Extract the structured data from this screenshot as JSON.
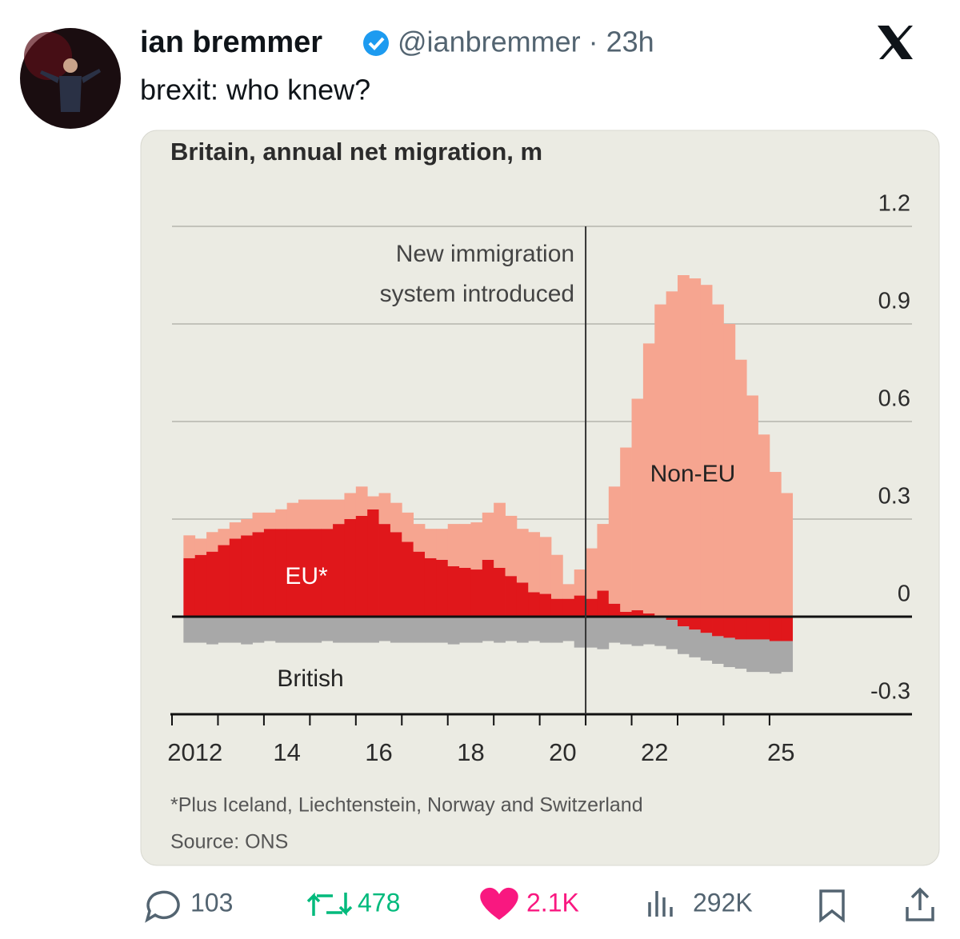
{
  "tweet": {
    "author": {
      "name": "ian bremmer",
      "meta": "@ianbremmer · 23h"
    },
    "text": "brexit: who knew?",
    "stats": {
      "replies": "103",
      "reposts": "478",
      "likes": "2.1K",
      "views": "292K"
    }
  },
  "chart_data": {
    "type": "bar",
    "stacked": true,
    "title": "Britain, annual net migration, m",
    "annotation": {
      "lines": [
        "New immigration",
        "system introduced"
      ],
      "x": 2021
    },
    "footnote": "*Plus Iceland, Liechtenstein, Norway and Switzerland",
    "source": "Source: ONS",
    "x": [
      2012.25,
      2012.5,
      2012.75,
      2013,
      2013.25,
      2013.5,
      2013.75,
      2014,
      2014.25,
      2014.5,
      2014.75,
      2015,
      2015.25,
      2015.5,
      2015.75,
      2016,
      2016.25,
      2016.5,
      2016.75,
      2017,
      2017.25,
      2017.5,
      2017.75,
      2018,
      2018.25,
      2018.5,
      2018.75,
      2019,
      2019.25,
      2019.5,
      2019.75,
      2020,
      2020.25,
      2020.5,
      2020.75,
      2021,
      2021.25,
      2021.5,
      2021.75,
      2022,
      2022.25,
      2022.5,
      2022.75,
      2023,
      2023.25,
      2023.5,
      2023.75,
      2024,
      2024.25,
      2024.5,
      2024.75,
      2025,
      2025.25
    ],
    "series": [
      {
        "name": "EU*",
        "color": "#e0171b",
        "values": [
          0.18,
          0.19,
          0.2,
          0.22,
          0.24,
          0.25,
          0.26,
          0.27,
          0.27,
          0.27,
          0.27,
          0.27,
          0.27,
          0.285,
          0.3,
          0.31,
          0.33,
          0.285,
          0.26,
          0.23,
          0.2,
          0.18,
          0.175,
          0.155,
          0.15,
          0.145,
          0.175,
          0.15,
          0.125,
          0.105,
          0.075,
          0.07,
          0.055,
          0.055,
          0.065,
          0.055,
          0.08,
          0.04,
          0.015,
          0.02,
          0.01,
          0,
          -0.01,
          -0.03,
          -0.04,
          -0.05,
          -0.06,
          -0.065,
          -0.07,
          -0.07,
          -0.07,
          -0.075,
          -0.075
        ]
      },
      {
        "name": "Non-EU",
        "color": "#f6a590",
        "values": [
          0.07,
          0.05,
          0.06,
          0.05,
          0.05,
          0.05,
          0.06,
          0.05,
          0.06,
          0.08,
          0.09,
          0.09,
          0.09,
          0.075,
          0.08,
          0.09,
          0.04,
          0.095,
          0.09,
          0.09,
          0.085,
          0.09,
          0.095,
          0.13,
          0.135,
          0.145,
          0.145,
          0.2,
          0.185,
          0.165,
          0.185,
          0.175,
          0.135,
          0.045,
          0.08,
          0.155,
          0.205,
          0.36,
          0.505,
          0.65,
          0.83,
          0.96,
          1.0,
          1.05,
          1.04,
          1.02,
          0.96,
          0.9,
          0.79,
          0.68,
          0.56,
          0.445,
          0.38
        ]
      },
      {
        "name": "British",
        "color": "#a8a8a8",
        "values": [
          -0.08,
          -0.08,
          -0.085,
          -0.08,
          -0.08,
          -0.085,
          -0.08,
          -0.075,
          -0.08,
          -0.08,
          -0.08,
          -0.08,
          -0.075,
          -0.08,
          -0.08,
          -0.08,
          -0.08,
          -0.075,
          -0.08,
          -0.08,
          -0.08,
          -0.08,
          -0.08,
          -0.085,
          -0.08,
          -0.08,
          -0.075,
          -0.08,
          -0.075,
          -0.08,
          -0.075,
          -0.08,
          -0.08,
          -0.075,
          -0.095,
          -0.095,
          -0.1,
          -0.08,
          -0.085,
          -0.09,
          -0.085,
          -0.09,
          -0.09,
          -0.085,
          -0.085,
          -0.085,
          -0.085,
          -0.09,
          -0.09,
          -0.1,
          -0.1,
          -0.1,
          -0.095
        ]
      }
    ],
    "xlim": [
      2012,
      2028.1
    ],
    "xticks": [
      2012,
      2013,
      2014,
      2015,
      2016,
      2017,
      2018,
      2019,
      2020,
      2021,
      2022,
      2023,
      2024,
      2025
    ],
    "xlabels": [
      {
        "value": 2012.5,
        "label": "2012"
      },
      {
        "value": 2014.5,
        "label": "14"
      },
      {
        "value": 2016.5,
        "label": "16"
      },
      {
        "value": 2018.5,
        "label": "18"
      },
      {
        "value": 2020.5,
        "label": "20"
      },
      {
        "value": 2022.5,
        "label": "22"
      },
      {
        "value": 2025.25,
        "label": "25"
      }
    ],
    "ylim": [
      -0.3,
      1.2
    ],
    "yticks": [
      -0.3,
      0,
      0.3,
      0.6,
      0.9,
      1.2
    ],
    "grid": true
  }
}
